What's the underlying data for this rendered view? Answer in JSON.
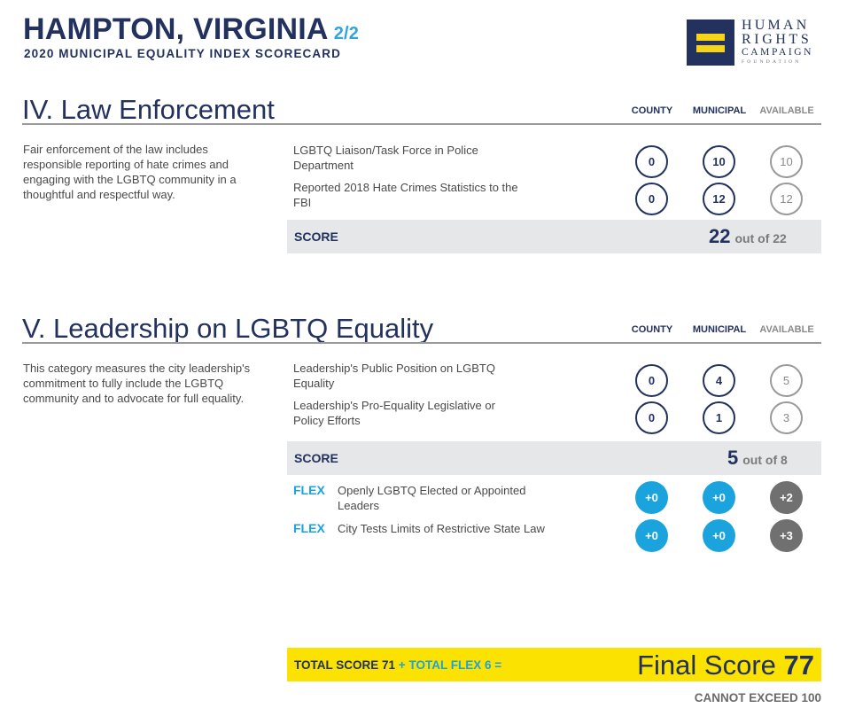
{
  "header": {
    "city": "HAMPTON, VIRGINIA",
    "page": "2/2",
    "subtitle": "2020 MUNICIPAL EQUALITY INDEX SCORECARD"
  },
  "logo": {
    "line1": "HUMAN",
    "line2": "RIGHTS",
    "line3": "CAMPAIGN",
    "line4": "FOUNDATION"
  },
  "columns": {
    "county": "COUNTY",
    "municipal": "MUNICIPAL",
    "available": "AVAILABLE"
  },
  "sections": [
    {
      "title": "IV.  Law Enforcement",
      "description": "Fair enforcement of the law includes responsible reporting of hate crimes and engaging with the LGBTQ community in a thoughtful and respectful way.",
      "items": [
        {
          "label": "LGBTQ Liaison/Task Force in Police Department",
          "county": "0",
          "municipal": "10",
          "available": "10"
        },
        {
          "label": "Reported 2018 Hate Crimes Statistics to the FBI",
          "county": "0",
          "municipal": "12",
          "available": "12"
        }
      ],
      "score_label": "SCORE",
      "score": "22",
      "score_out_of": "out of 22"
    },
    {
      "title": "V.  Leadership on LGBTQ Equality",
      "description": "This category measures the city leadership's commitment to fully include the LGBTQ community and to advocate for full equality.",
      "items": [
        {
          "label": "Leadership's Public Position on LGBTQ Equality",
          "county": "0",
          "municipal": "4",
          "available": "5"
        },
        {
          "label": "Leadership's Pro-Equality Legislative or Policy Efforts",
          "county": "0",
          "municipal": "1",
          "available": "3"
        }
      ],
      "score_label": "SCORE",
      "score": "5",
      "score_out_of": "out of 8",
      "flex": [
        {
          "tag": "FLEX",
          "label": "Openly LGBTQ Elected or Appointed Leaders",
          "county": "+0",
          "municipal": "+0",
          "available": "+2"
        },
        {
          "tag": "FLEX",
          "label": "City Tests Limits of Restrictive State Law",
          "county": "+0",
          "municipal": "+0",
          "available": "+3"
        }
      ]
    }
  ],
  "totals": {
    "total_score_label": "TOTAL SCORE 71",
    "plus": "+",
    "total_flex_label": "TOTAL FLEX 6",
    "equals": "=",
    "final_label": "Final Score",
    "final_value": "77",
    "cap_note": "CANNOT EXCEED 100"
  },
  "colors": {
    "navy": "#22315e",
    "flex_blue": "#1aa3dc",
    "yellow": "#fbe200",
    "score_gray": "#e6e7e8"
  }
}
